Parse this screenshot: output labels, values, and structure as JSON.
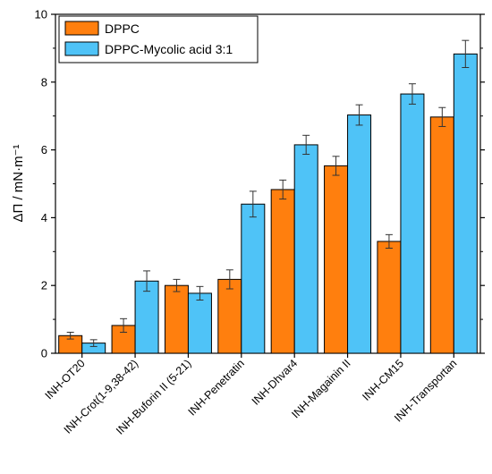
{
  "chart_data": {
    "type": "bar",
    "ylabel": "ΔΠ / mN·m⁻¹",
    "ylim": [
      0,
      10
    ],
    "yticks": [
      0,
      2,
      4,
      6,
      8,
      10
    ],
    "grid": false,
    "legend_position": "top-left",
    "categories": [
      "INH-OT20",
      "INH-Crot(1-9,38-42)",
      "INH-Buforin II (5-21)",
      "INH-Penetratin",
      "INH-Dhvar4",
      "INH-Magainin II",
      "INH-CM15",
      "INH-Transportan"
    ],
    "series": [
      {
        "name": "DPPC",
        "color": "#ff7f0e",
        "values": [
          0.52,
          0.82,
          2.0,
          2.18,
          4.83,
          5.53,
          3.3,
          6.97
        ],
        "errors": [
          0.1,
          0.2,
          0.18,
          0.28,
          0.28,
          0.28,
          0.2,
          0.28
        ]
      },
      {
        "name": "DPPC-Mycolic acid 3:1",
        "color": "#4fc3f7",
        "values": [
          0.3,
          2.13,
          1.77,
          4.4,
          6.15,
          7.03,
          7.65,
          8.83
        ],
        "errors": [
          0.1,
          0.3,
          0.2,
          0.38,
          0.28,
          0.3,
          0.3,
          0.4
        ]
      }
    ]
  }
}
